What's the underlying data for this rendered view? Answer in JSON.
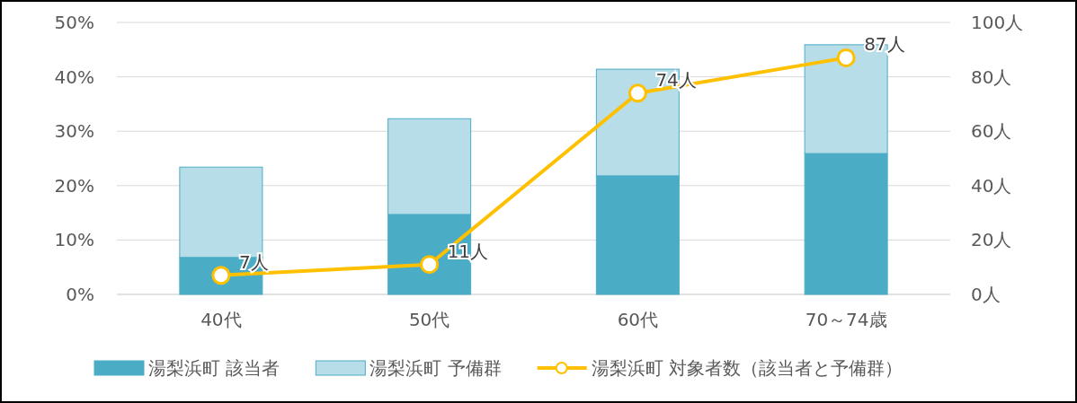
{
  "chart_data": {
    "type": "bar",
    "stacked": true,
    "categories": [
      "40代",
      "50代",
      "60代",
      "70～74歳"
    ],
    "series": [
      {
        "name": "湯梨浜町 該当者",
        "color": "#4bacc6",
        "values": [
          6.8,
          14.7,
          21.8,
          25.9
        ]
      },
      {
        "name": "湯梨浜町 予備群",
        "color": "#b7dde8",
        "values": [
          16.6,
          17.6,
          19.6,
          20.0
        ]
      },
      {
        "name": "湯梨浜町 対象者数（該当者と予備群）",
        "type": "line",
        "axis": "y2",
        "color": "#ffc000",
        "marker": "circle",
        "values": [
          7,
          11,
          74,
          87
        ],
        "value_labels": [
          "7人",
          "11人",
          "74人",
          "87人"
        ]
      }
    ],
    "ylim": [
      0,
      50
    ],
    "yticks": [
      {
        "value": 0,
        "label": "0%"
      },
      {
        "value": 10,
        "label": "10%"
      },
      {
        "value": 20,
        "label": "20%"
      },
      {
        "value": 30,
        "label": "30%"
      },
      {
        "value": 40,
        "label": "40%"
      },
      {
        "value": 50,
        "label": "50%"
      }
    ],
    "y2lim": [
      0,
      100
    ],
    "y2ticks": [
      {
        "value": 0,
        "label": "0人"
      },
      {
        "value": 20,
        "label": "20人"
      },
      {
        "value": 40,
        "label": "40人"
      },
      {
        "value": 60,
        "label": "60人"
      },
      {
        "value": 80,
        "label": "80人"
      },
      {
        "value": 100,
        "label": "100人"
      }
    ],
    "grid": "y",
    "legend": "bottom"
  }
}
